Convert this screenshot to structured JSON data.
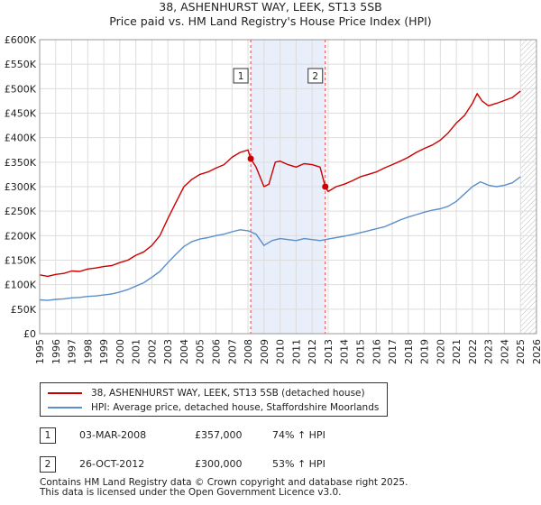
{
  "title": {
    "line1": "38, ASHENHURST WAY, LEEK, ST13 5SB",
    "line2": "Price paid vs. HM Land Registry's House Price Index (HPI)"
  },
  "chart_data": {
    "type": "line",
    "xlim": [
      1995,
      2026
    ],
    "ylim": [
      0,
      600000
    ],
    "y_ticks": [
      0,
      50000,
      100000,
      150000,
      200000,
      250000,
      300000,
      350000,
      400000,
      450000,
      500000,
      550000,
      600000
    ],
    "y_tick_labels": [
      "£0",
      "£50K",
      "£100K",
      "£150K",
      "£200K",
      "£250K",
      "£300K",
      "£350K",
      "£400K",
      "£450K",
      "£500K",
      "£550K",
      "£600K"
    ],
    "x_ticks": [
      1995,
      1996,
      1997,
      1998,
      1999,
      2000,
      2001,
      2002,
      2003,
      2004,
      2005,
      2006,
      2007,
      2008,
      2009,
      2010,
      2011,
      2012,
      2013,
      2014,
      2015,
      2016,
      2017,
      2018,
      2019,
      2020,
      2021,
      2022,
      2023,
      2024,
      2025,
      2026
    ],
    "grid": true,
    "highlight_period": [
      2008.17,
      2012.82
    ],
    "forecast_start": 2025.0,
    "series": [
      {
        "name": "38, ASHENHURST WAY, LEEK, ST13 5SB (detached house)",
        "color": "#cc0000",
        "x": [
          1995,
          1995.5,
          1996,
          1996.5,
          1997,
          1997.5,
          1998,
          1998.5,
          1999,
          1999.5,
          2000,
          2000.5,
          2001,
          2001.5,
          2002,
          2002.5,
          2003,
          2003.5,
          2004,
          2004.5,
          2005,
          2005.5,
          2006,
          2006.5,
          2007,
          2007.5,
          2008,
          2008.17,
          2008.5,
          2009,
          2009.3,
          2009.7,
          2010,
          2010.5,
          2011,
          2011.5,
          2012,
          2012.5,
          2012.82,
          2013,
          2013.5,
          2014,
          2014.5,
          2015,
          2015.5,
          2016,
          2016.5,
          2017,
          2017.5,
          2018,
          2018.5,
          2019,
          2019.5,
          2020,
          2020.5,
          2021,
          2021.5,
          2022,
          2022.3,
          2022.6,
          2023,
          2023.5,
          2024,
          2024.5,
          2025
        ],
        "values": [
          120000,
          117000,
          121000,
          123000,
          128000,
          127000,
          132000,
          134000,
          137000,
          139000,
          145000,
          150000,
          160000,
          167000,
          180000,
          200000,
          235000,
          268000,
          300000,
          315000,
          325000,
          330000,
          338000,
          345000,
          360000,
          370000,
          375000,
          357000,
          340000,
          300000,
          305000,
          350000,
          352000,
          345000,
          340000,
          347000,
          345000,
          340000,
          300000,
          290000,
          300000,
          305000,
          312000,
          320000,
          325000,
          330000,
          338000,
          345000,
          352000,
          360000,
          370000,
          378000,
          385000,
          395000,
          410000,
          430000,
          445000,
          470000,
          490000,
          475000,
          465000,
          470000,
          476000,
          482000,
          495000
        ]
      },
      {
        "name": "HPI: Average price, detached house, Staffordshire Moorlands",
        "color": "#5b8fc9",
        "x": [
          1995,
          1995.5,
          1996,
          1996.5,
          1997,
          1997.5,
          1998,
          1998.5,
          1999,
          1999.5,
          2000,
          2000.5,
          2001,
          2001.5,
          2002,
          2002.5,
          2003,
          2003.5,
          2004,
          2004.5,
          2005,
          2005.5,
          2006,
          2006.5,
          2007,
          2007.5,
          2008,
          2008.5,
          2009,
          2009.5,
          2010,
          2010.5,
          2011,
          2011.5,
          2012,
          2012.5,
          2013,
          2013.5,
          2014,
          2014.5,
          2015,
          2015.5,
          2016,
          2016.5,
          2017,
          2017.5,
          2018,
          2018.5,
          2019,
          2019.5,
          2020,
          2020.5,
          2021,
          2021.5,
          2022,
          2022.5,
          2023,
          2023.5,
          2024,
          2024.5,
          2025
        ],
        "values": [
          69000,
          68000,
          70000,
          71000,
          73000,
          74000,
          76000,
          77000,
          79000,
          81000,
          85000,
          90000,
          97000,
          104000,
          115000,
          127000,
          145000,
          162000,
          178000,
          188000,
          193000,
          196000,
          200000,
          203000,
          208000,
          212000,
          210000,
          203000,
          180000,
          190000,
          194000,
          192000,
          190000,
          194000,
          192000,
          190000,
          193000,
          196000,
          199000,
          202000,
          206000,
          210000,
          214000,
          218000,
          225000,
          232000,
          238000,
          243000,
          248000,
          252000,
          255000,
          260000,
          270000,
          285000,
          300000,
          310000,
          303000,
          300000,
          303000,
          308000,
          320000
        ]
      }
    ],
    "transactions": [
      {
        "label": "1",
        "x": 2008.17,
        "y": 357000
      },
      {
        "label": "2",
        "x": 2012.82,
        "y": 300000
      }
    ]
  },
  "legend": {
    "property_label": "38, ASHENHURST WAY, LEEK, ST13 5SB (detached house)",
    "hpi_label": "HPI: Average price, detached house, Staffordshire Moorlands"
  },
  "transactions_table": [
    {
      "num": "1",
      "date": "03-MAR-2008",
      "price": "£357,000",
      "hpi": "74% ↑ HPI"
    },
    {
      "num": "2",
      "date": "26-OCT-2012",
      "price": "£300,000",
      "hpi": "53% ↑ HPI"
    }
  ],
  "footer": {
    "line1": "Contains HM Land Registry data © Crown copyright and database right 2025.",
    "line2": "This data is licensed under the Open Government Licence v3.0."
  },
  "colors": {
    "property": "#cc0000",
    "hpi": "#5b8fc9",
    "highlight": "#e8eefa",
    "grid": "#dddddd"
  }
}
